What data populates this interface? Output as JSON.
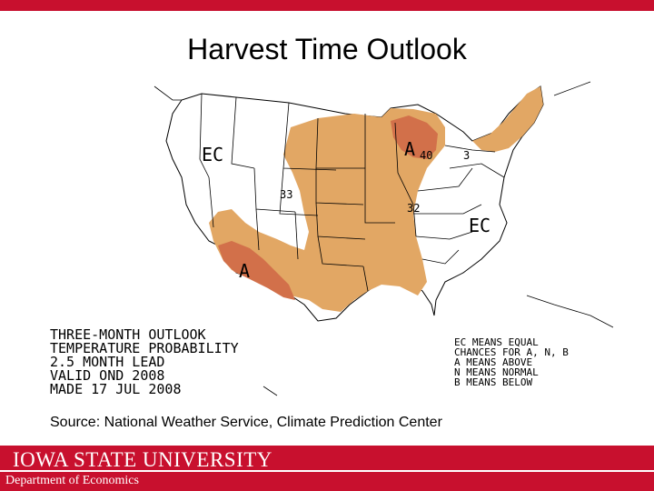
{
  "title": "Harvest Time Outlook",
  "map": {
    "labels": {
      "ec_west": "EC",
      "ec_east": "EC",
      "a_north": "A",
      "a_south": "A",
      "c40": "40",
      "c33": "33",
      "c33b": "33",
      "c32": "32",
      "c3": "3"
    },
    "info_lines": [
      "THREE-MONTH OUTLOOK",
      "TEMPERATURE PROBABILITY",
      "2.5 MONTH LEAD",
      "VALID OND 2008",
      "MADE 17 JUL 2008"
    ],
    "legend_lines": [
      "EC MEANS EQUAL",
      "CHANCES FOR A, N, B",
      "A MEANS ABOVE",
      "N MEANS NORMAL",
      "B MEANS BELOW"
    ],
    "colors": {
      "above_33": "#e2a764",
      "above_40": "#d2704a",
      "border": "#000000"
    }
  },
  "source": "Source: National Weather Service, Climate Prediction Center",
  "footer": {
    "university": "IOWA STATE UNIVERSITY",
    "department": "Department of Economics",
    "color": "#c8102e"
  }
}
